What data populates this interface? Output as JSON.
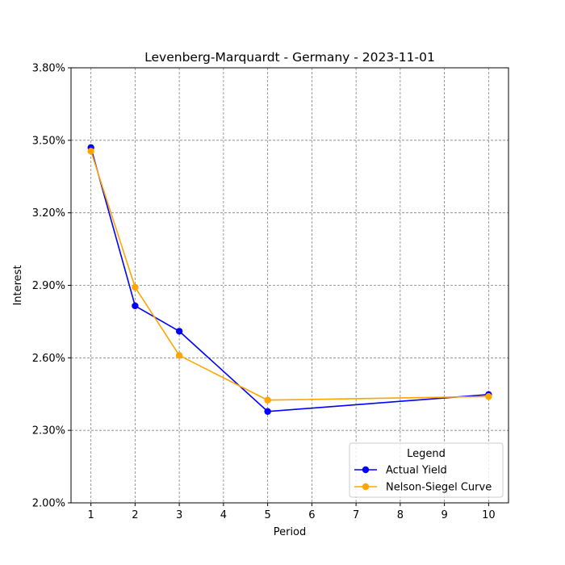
{
  "chart_data": {
    "type": "line",
    "title": "Levenberg-Marquardt - Germany - 2023-11-01",
    "xlabel": "Period",
    "ylabel": "Interest",
    "xlim": [
      0.55,
      10.45
    ],
    "ylim": [
      2.0,
      3.8
    ],
    "x_ticks": [
      1,
      2,
      3,
      4,
      5,
      6,
      7,
      8,
      9,
      10
    ],
    "y_ticks": [
      2.0,
      2.3,
      2.6,
      2.9,
      3.2,
      3.5,
      3.8
    ],
    "y_tick_labels": [
      "2.00%",
      "2.30%",
      "2.60%",
      "2.90%",
      "3.20%",
      "3.50%",
      "3.80%"
    ],
    "grid": true,
    "legend": {
      "title": "Legend",
      "placement": "lower-right"
    },
    "series": [
      {
        "name": "Actual Yield",
        "color": "#0000ff",
        "x": [
          1,
          2,
          3,
          5,
          10
        ],
        "y": [
          3.47,
          2.815,
          2.71,
          2.378,
          2.448
        ]
      },
      {
        "name": "Nelson-Siegel Curve",
        "color": "#ffa500",
        "x": [
          1,
          2,
          3,
          5,
          10
        ],
        "y": [
          3.455,
          2.892,
          2.61,
          2.425,
          2.44
        ]
      }
    ]
  }
}
